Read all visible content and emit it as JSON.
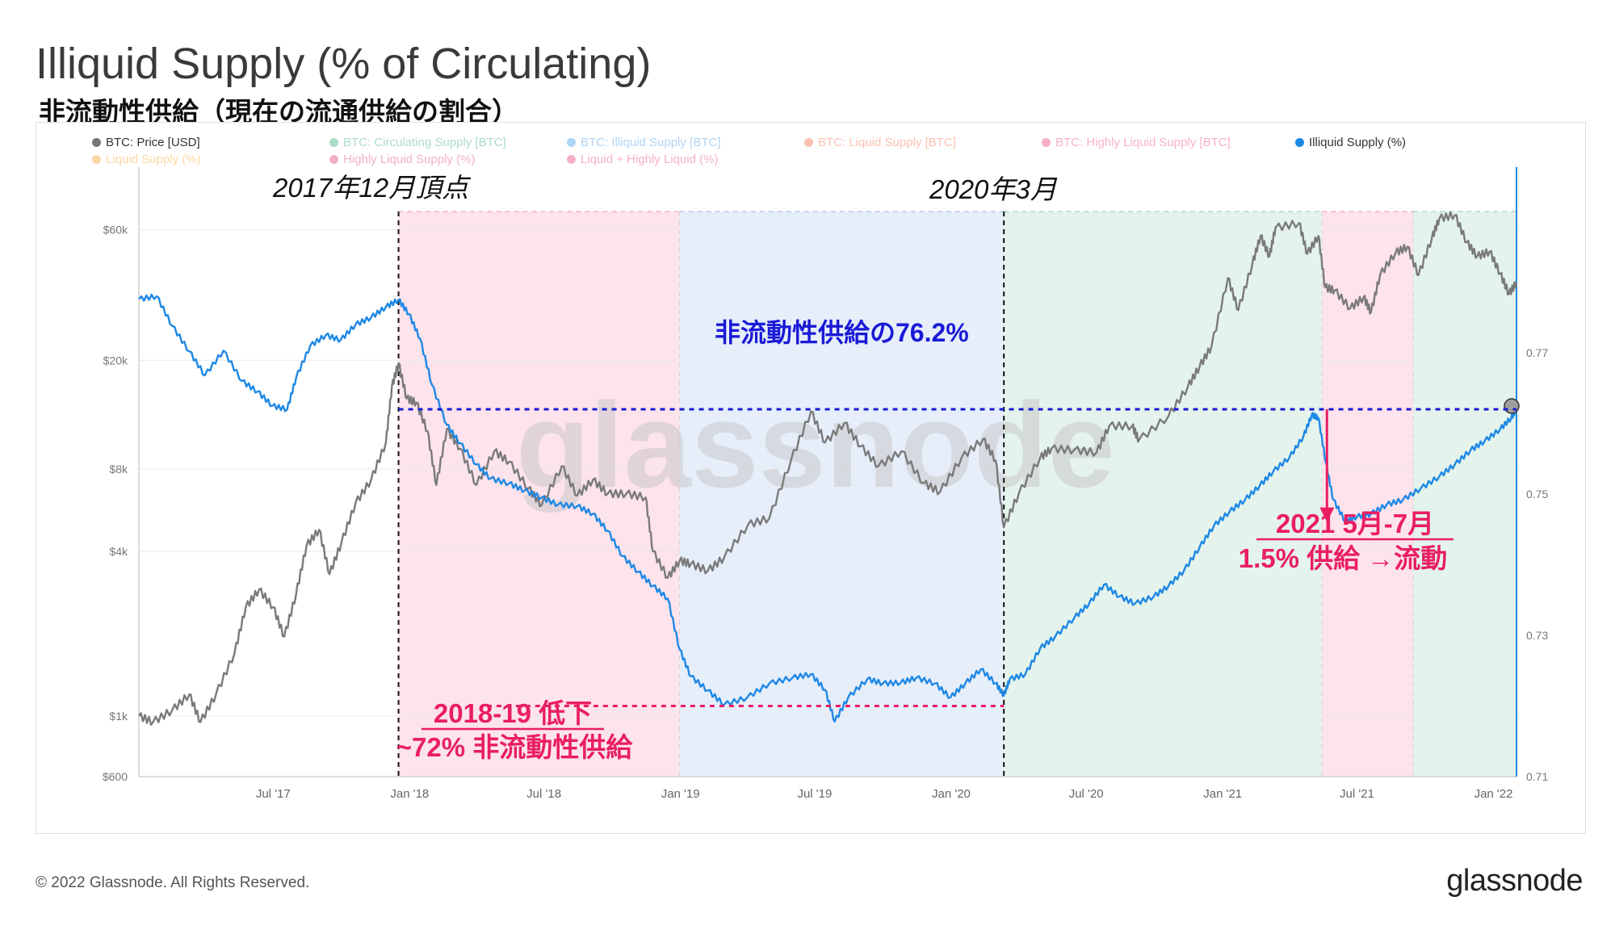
{
  "title": "Illiquid Supply (% of Circulating)",
  "subtitle": "非流動性供給（現在の流通供給の割合）",
  "footer": {
    "copyright": "© 2022 Glassnode. All Rights Reserved.",
    "brand": "glassnode"
  },
  "watermark": "glassnode",
  "legend": [
    {
      "label": "BTC: Price [USD]",
      "color": "#777777",
      "active": true
    },
    {
      "label": "BTC: Circulating Supply [BTC]",
      "color": "#0f9d58",
      "active": false
    },
    {
      "label": "BTC: Illiquid Supply [BTC]",
      "color": "#1e88e5",
      "active": false
    },
    {
      "label": "BTC: Liquid Supply [BTC]",
      "color": "#f4511e",
      "active": false
    },
    {
      "label": "BTC: Highly Liquid Supply [BTC]",
      "color": "#e91e63",
      "active": false
    },
    {
      "label": "Illiquid Supply (%)",
      "color": "#1e88e5",
      "active": true
    },
    {
      "label": "Liquid Supply (%)",
      "color": "#fb8c00",
      "active": false
    },
    {
      "label": "Highly Liquid Supply (%)",
      "color": "#d81b60",
      "active": false
    },
    {
      "label": "Liquid + Highly Liquid (%)",
      "color": "#e91e63",
      "active": false
    }
  ],
  "colors": {
    "price": "#7a7a7a",
    "illiquid": "#1e88e5",
    "annotation_red": "#e91e63",
    "annotation_blue": "#1a1ad6",
    "region_red": "#fde3ec",
    "region_blue": "#e6eefa",
    "region_green": "#e4f4ec"
  },
  "annotations": {
    "peak_2017": "2017年12月頂点",
    "march_2020": "2020年3月",
    "level_label": "非流動性供給の76.2%",
    "low_line1": "2018-19 低下",
    "low_line2": "~72% 非流動性供給",
    "drop_line1": "2021 5月-7月",
    "drop_line2": "1.5% 供給 →流動"
  },
  "chart_data": {
    "type": "line",
    "x_ticks": [
      "Jul '17",
      "Jan '18",
      "Jul '18",
      "Jan '19",
      "Jul '19",
      "Jan '20",
      "Jul '20",
      "Jan '21",
      "Jul '21",
      "Jan '22"
    ],
    "y_left": {
      "label": "BTC: Price [USD]",
      "scale": "log",
      "ticks": [
        "$600",
        "$1k",
        "$4k",
        "$8k",
        "$20k",
        "$60k"
      ],
      "range": [
        600,
        70000
      ]
    },
    "y_right": {
      "label": "Illiquid Supply (%)",
      "ticks": [
        "0.71",
        "0.73",
        "0.75",
        "0.77"
      ],
      "range": [
        0.71,
        0.79
      ]
    },
    "regions": [
      {
        "from": "2017-12-17",
        "to": "2018-12-31",
        "color": "red"
      },
      {
        "from": "2018-12-31",
        "to": "2020-03-12",
        "color": "blue"
      },
      {
        "from": "2020-03-12",
        "to": "2021-05-15",
        "color": "green"
      },
      {
        "from": "2021-05-15",
        "to": "2021-09-15",
        "color": "red"
      },
      {
        "from": "2021-09-15",
        "to": "2022-02-01",
        "color": "green"
      }
    ],
    "reference_lines": [
      {
        "value": 0.762,
        "axis": "right",
        "color": "blue",
        "from": "2017-12-17",
        "to": "2022-02-01"
      },
      {
        "value": 0.72,
        "axis": "right",
        "color": "red",
        "from": "2018-04-15",
        "to": "2020-03-12"
      }
    ],
    "series": [
      {
        "name": "BTC: Price [USD]",
        "axis": "left",
        "points": [
          [
            "2017-01-01",
            1000
          ],
          [
            "2017-01-20",
            950
          ],
          [
            "2017-02-15",
            1050
          ],
          [
            "2017-03-10",
            1200
          ],
          [
            "2017-03-25",
            950
          ],
          [
            "2017-04-15",
            1200
          ],
          [
            "2017-05-10",
            1700
          ],
          [
            "2017-05-25",
            2500
          ],
          [
            "2017-06-12",
            2900
          ],
          [
            "2017-07-01",
            2500
          ],
          [
            "2017-07-16",
            1950
          ],
          [
            "2017-08-01",
            2800
          ],
          [
            "2017-08-15",
            4200
          ],
          [
            "2017-09-01",
            4800
          ],
          [
            "2017-09-15",
            3300
          ],
          [
            "2017-10-01",
            4300
          ],
          [
            "2017-10-20",
            6000
          ],
          [
            "2017-11-10",
            7300
          ],
          [
            "2017-11-30",
            10000
          ],
          [
            "2017-12-08",
            16000
          ],
          [
            "2017-12-17",
            19500
          ],
          [
            "2017-12-28",
            14500
          ],
          [
            "2018-01-10",
            14000
          ],
          [
            "2018-01-25",
            11000
          ],
          [
            "2018-02-06",
            7000
          ],
          [
            "2018-02-20",
            11200
          ],
          [
            "2018-03-10",
            9500
          ],
          [
            "2018-04-01",
            7000
          ],
          [
            "2018-04-25",
            9300
          ],
          [
            "2018-05-15",
            8500
          ],
          [
            "2018-06-10",
            6800
          ],
          [
            "2018-06-28",
            5900
          ],
          [
            "2018-07-25",
            8200
          ],
          [
            "2018-08-15",
            6400
          ],
          [
            "2018-09-05",
            7300
          ],
          [
            "2018-09-25",
            6500
          ],
          [
            "2018-10-20",
            6500
          ],
          [
            "2018-11-15",
            6300
          ],
          [
            "2018-11-25",
            4000
          ],
          [
            "2018-12-15",
            3200
          ],
          [
            "2018-12-31",
            3700
          ],
          [
            "2019-01-15",
            3600
          ],
          [
            "2019-02-07",
            3400
          ],
          [
            "2019-03-01",
            3800
          ],
          [
            "2019-04-02",
            5000
          ],
          [
            "2019-05-01",
            5300
          ],
          [
            "2019-05-30",
            8600
          ],
          [
            "2019-06-26",
            13000
          ],
          [
            "2019-07-15",
            10000
          ],
          [
            "2019-08-10",
            11800
          ],
          [
            "2019-09-01",
            9700
          ],
          [
            "2019-09-25",
            8200
          ],
          [
            "2019-10-26",
            9300
          ],
          [
            "2019-11-25",
            7100
          ],
          [
            "2019-12-17",
            6600
          ],
          [
            "2020-01-15",
            8800
          ],
          [
            "2020-02-13",
            10300
          ],
          [
            "2020-03-01",
            8600
          ],
          [
            "2020-03-12",
            4900
          ],
          [
            "2020-04-01",
            6500
          ],
          [
            "2020-04-30",
            8800
          ],
          [
            "2020-05-15",
            9500
          ],
          [
            "2020-06-15",
            9400
          ],
          [
            "2020-07-15",
            9200
          ],
          [
            "2020-08-01",
            11500
          ],
          [
            "2020-09-01",
            11500
          ],
          [
            "2020-09-10",
            10200
          ],
          [
            "2020-10-20",
            12500
          ],
          [
            "2020-11-15",
            16000
          ],
          [
            "2020-12-01",
            19000
          ],
          [
            "2020-12-17",
            22500
          ],
          [
            "2021-01-08",
            40000
          ],
          [
            "2021-01-22",
            30500
          ],
          [
            "2021-02-10",
            45000
          ],
          [
            "2021-02-21",
            57000
          ],
          [
            "2021-03-05",
            48000
          ],
          [
            "2021-03-13",
            61000
          ],
          [
            "2021-04-14",
            63500
          ],
          [
            "2021-04-25",
            49000
          ],
          [
            "2021-05-10",
            57000
          ],
          [
            "2021-05-19",
            37000
          ],
          [
            "2021-06-01",
            36000
          ],
          [
            "2021-06-22",
            31000
          ],
          [
            "2021-07-10",
            34000
          ],
          [
            "2021-07-20",
            30000
          ],
          [
            "2021-08-01",
            41000
          ],
          [
            "2021-08-22",
            49500
          ],
          [
            "2021-09-07",
            52000
          ],
          [
            "2021-09-22",
            41000
          ],
          [
            "2021-10-10",
            56000
          ],
          [
            "2021-10-20",
            66000
          ],
          [
            "2021-11-10",
            68000
          ],
          [
            "2021-11-26",
            54000
          ],
          [
            "2021-12-10",
            48000
          ],
          [
            "2021-12-27",
            50000
          ],
          [
            "2022-01-10",
            41500
          ],
          [
            "2022-01-22",
            35000
          ],
          [
            "2022-02-01",
            38500
          ]
        ]
      },
      {
        "name": "Illiquid Supply (%)",
        "axis": "right",
        "points": [
          [
            "2017-01-01",
            0.7776
          ],
          [
            "2017-01-25",
            0.778
          ],
          [
            "2017-02-15",
            0.7738
          ],
          [
            "2017-03-10",
            0.7702
          ],
          [
            "2017-03-31",
            0.7668
          ],
          [
            "2017-04-25",
            0.7703
          ],
          [
            "2017-05-20",
            0.766
          ],
          [
            "2017-06-10",
            0.7645
          ],
          [
            "2017-06-30",
            0.7625
          ],
          [
            "2017-07-20",
            0.762
          ],
          [
            "2017-08-01",
            0.7665
          ],
          [
            "2017-08-20",
            0.771
          ],
          [
            "2017-09-10",
            0.7725
          ],
          [
            "2017-09-30",
            0.7718
          ],
          [
            "2017-10-20",
            0.774
          ],
          [
            "2017-11-10",
            0.775
          ],
          [
            "2017-11-30",
            0.7765
          ],
          [
            "2017-12-17",
            0.7775
          ],
          [
            "2017-12-31",
            0.7755
          ],
          [
            "2018-01-15",
            0.772
          ],
          [
            "2018-01-31",
            0.7655
          ],
          [
            "2018-02-20",
            0.7598
          ],
          [
            "2018-03-10",
            0.7572
          ],
          [
            "2018-04-01",
            0.7542
          ],
          [
            "2018-04-20",
            0.7522
          ],
          [
            "2018-05-15",
            0.7515
          ],
          [
            "2018-06-05",
            0.7505
          ],
          [
            "2018-06-28",
            0.7495
          ],
          [
            "2018-07-20",
            0.7485
          ],
          [
            "2018-08-15",
            0.7483
          ],
          [
            "2018-09-05",
            0.7472
          ],
          [
            "2018-09-25",
            0.7448
          ],
          [
            "2018-10-15",
            0.7412
          ],
          [
            "2018-11-05",
            0.739
          ],
          [
            "2018-11-25",
            0.737
          ],
          [
            "2018-12-15",
            0.7352
          ],
          [
            "2018-12-31",
            0.728
          ],
          [
            "2019-01-15",
            0.7242
          ],
          [
            "2019-02-07",
            0.7222
          ],
          [
            "2019-03-01",
            0.7202
          ],
          [
            "2019-04-01",
            0.7212
          ],
          [
            "2019-05-01",
            0.7232
          ],
          [
            "2019-06-01",
            0.724
          ],
          [
            "2019-06-26",
            0.7245
          ],
          [
            "2019-07-15",
            0.7223
          ],
          [
            "2019-07-28",
            0.7178
          ],
          [
            "2019-08-15",
            0.7212
          ],
          [
            "2019-09-10",
            0.7238
          ],
          [
            "2019-10-01",
            0.7232
          ],
          [
            "2019-10-25",
            0.7233
          ],
          [
            "2019-11-15",
            0.724
          ],
          [
            "2019-12-10",
            0.7232
          ],
          [
            "2019-12-31",
            0.7212
          ],
          [
            "2020-01-20",
            0.7232
          ],
          [
            "2020-02-10",
            0.7252
          ],
          [
            "2020-03-01",
            0.7232
          ],
          [
            "2020-03-12",
            0.7215
          ],
          [
            "2020-03-20",
            0.7238
          ],
          [
            "2020-04-10",
            0.7245
          ],
          [
            "2020-04-30",
            0.7282
          ],
          [
            "2020-05-20",
            0.7298
          ],
          [
            "2020-06-15",
            0.7325
          ],
          [
            "2020-07-05",
            0.7345
          ],
          [
            "2020-07-25",
            0.7372
          ],
          [
            "2020-08-15",
            0.7355
          ],
          [
            "2020-09-05",
            0.7345
          ],
          [
            "2020-09-30",
            0.7355
          ],
          [
            "2020-10-20",
            0.737
          ],
          [
            "2020-11-10",
            0.7392
          ],
          [
            "2020-12-01",
            0.7425
          ],
          [
            "2020-12-20",
            0.7455
          ],
          [
            "2021-01-10",
            0.7475
          ],
          [
            "2021-01-31",
            0.7492
          ],
          [
            "2021-02-20",
            0.7512
          ],
          [
            "2021-03-10",
            0.7532
          ],
          [
            "2021-04-01",
            0.7552
          ],
          [
            "2021-04-20",
            0.7582
          ],
          [
            "2021-05-01",
            0.7612
          ],
          [
            "2021-05-10",
            0.7608
          ],
          [
            "2021-05-20",
            0.7545
          ],
          [
            "2021-05-30",
            0.7492
          ],
          [
            "2021-06-15",
            0.7462
          ],
          [
            "2021-07-01",
            0.7468
          ],
          [
            "2021-07-20",
            0.7472
          ],
          [
            "2021-08-10",
            0.7485
          ],
          [
            "2021-09-01",
            0.7492
          ],
          [
            "2021-09-25",
            0.7508
          ],
          [
            "2021-10-20",
            0.7525
          ],
          [
            "2021-11-10",
            0.7542
          ],
          [
            "2021-12-01",
            0.7562
          ],
          [
            "2021-12-20",
            0.7575
          ],
          [
            "2022-01-10",
            0.7592
          ],
          [
            "2022-01-25",
            0.7608
          ],
          [
            "2022-02-01",
            0.762
          ]
        ]
      }
    ]
  }
}
